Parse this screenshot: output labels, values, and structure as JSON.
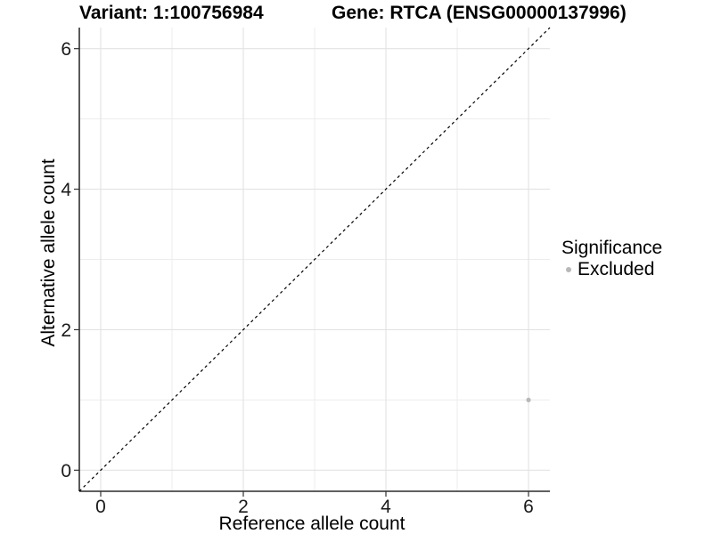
{
  "chart_data": {
    "type": "scatter",
    "title_left": "Variant: 1:100756984",
    "title_right": "Gene: RTCA (ENSG00000137996)",
    "xlabel": "Reference allele count",
    "ylabel": "Alternative allele count",
    "xlim": [
      -0.3,
      6.3
    ],
    "ylim": [
      -0.3,
      6.3
    ],
    "xticks": [
      0,
      2,
      4,
      6
    ],
    "yticks": [
      0,
      2,
      4,
      6
    ],
    "minor_gridlines": [
      1,
      3,
      5
    ],
    "grid": "major+minor",
    "points": [
      {
        "x": 6,
        "y": 1,
        "significance": "Excluded"
      }
    ],
    "reference_line": {
      "kind": "identity",
      "style": "dashed",
      "color": "#000000"
    },
    "legend": {
      "title": "Significance",
      "position": "right",
      "entries": [
        {
          "label": "Excluded",
          "color": "#b8b8b8"
        }
      ]
    },
    "style": {
      "point_color": "#b8b8b8",
      "point_radius": 2.6,
      "grid_major_color": "#e2e2e2",
      "grid_minor_color": "#ededed",
      "axis_color": "#000000",
      "tick_color": "#333333",
      "tick_label_color": "#1a1a1a"
    }
  }
}
